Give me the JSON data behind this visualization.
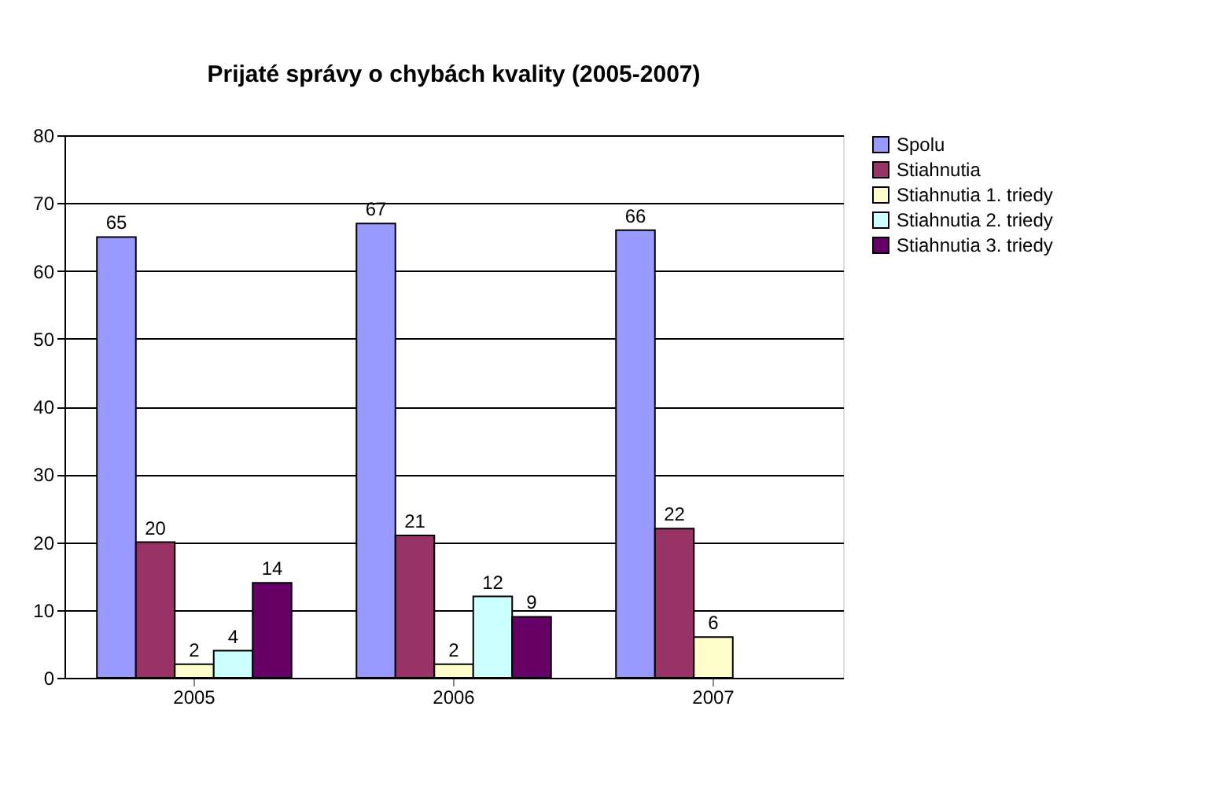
{
  "chart_data": {
    "type": "bar",
    "title": "Prijaté správy o chybách kvality (2005-2007)",
    "categories": [
      "2005",
      "2006",
      "2007"
    ],
    "series": [
      {
        "name": "Spolu",
        "color": "#9999ff",
        "values": [
          65,
          67,
          66
        ]
      },
      {
        "name": "Stiahnutia",
        "color": "#993366",
        "values": [
          20,
          21,
          22
        ]
      },
      {
        "name": "Stiahnutia 1. triedy",
        "color": "#ffffcc",
        "values": [
          2,
          2,
          6
        ]
      },
      {
        "name": "Stiahnutia 2. triedy",
        "color": "#ccffff",
        "values": [
          4,
          12,
          null
        ]
      },
      {
        "name": "Stiahnutia 3. triedy",
        "color": "#660066",
        "values": [
          14,
          9,
          null
        ]
      }
    ],
    "ylim": [
      0,
      80
    ],
    "yticks": [
      0,
      10,
      20,
      30,
      40,
      50,
      60,
      70,
      80
    ],
    "grid": "y",
    "legend": "right",
    "data_labels": true
  }
}
